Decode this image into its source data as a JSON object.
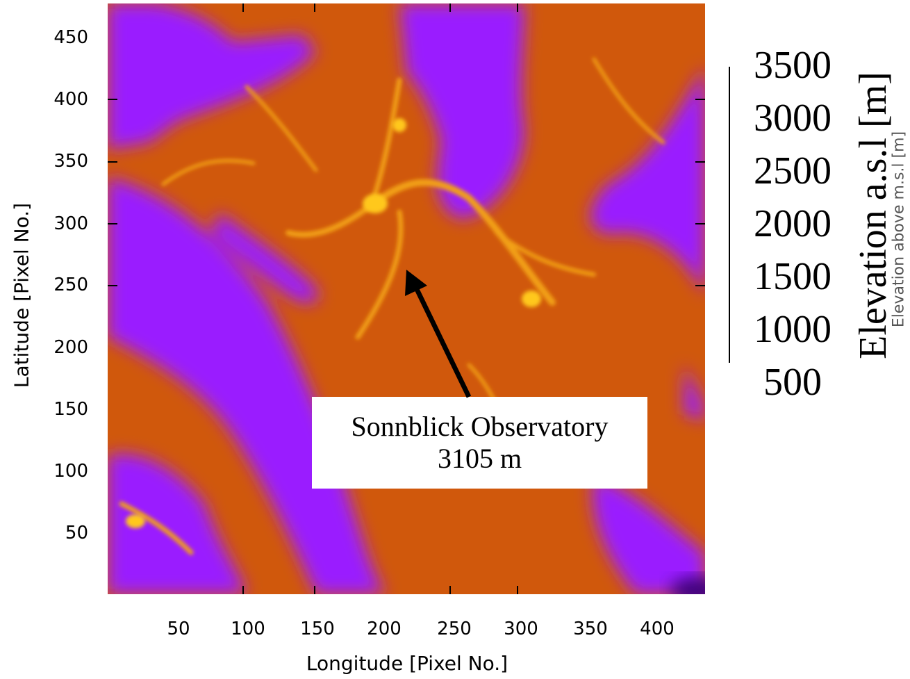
{
  "map": {
    "x_axis_title": "Longitude [Pixel No.]",
    "y_axis_title": "Latitude [Pixel No.]",
    "x_ticks": [
      "50",
      "100",
      "150",
      "200",
      "250",
      "300",
      "350",
      "400"
    ],
    "y_ticks": [
      "50",
      "100",
      "150",
      "200",
      "250",
      "300",
      "350",
      "400",
      "450"
    ],
    "annotation": {
      "line1": "Sonnblick Observatory",
      "line2": "3105 m"
    },
    "colorbar": {
      "title": "Elevation a.s.l [m]",
      "ghost_title": "Elevation above m.s.l [m]",
      "labels": [
        "3500",
        "3000",
        "2500",
        "2000",
        "1500",
        "1000",
        "500"
      ]
    },
    "colors": {
      "low": "#9a1cff",
      "mid": "#d86010",
      "high": "#f6b412"
    }
  }
}
